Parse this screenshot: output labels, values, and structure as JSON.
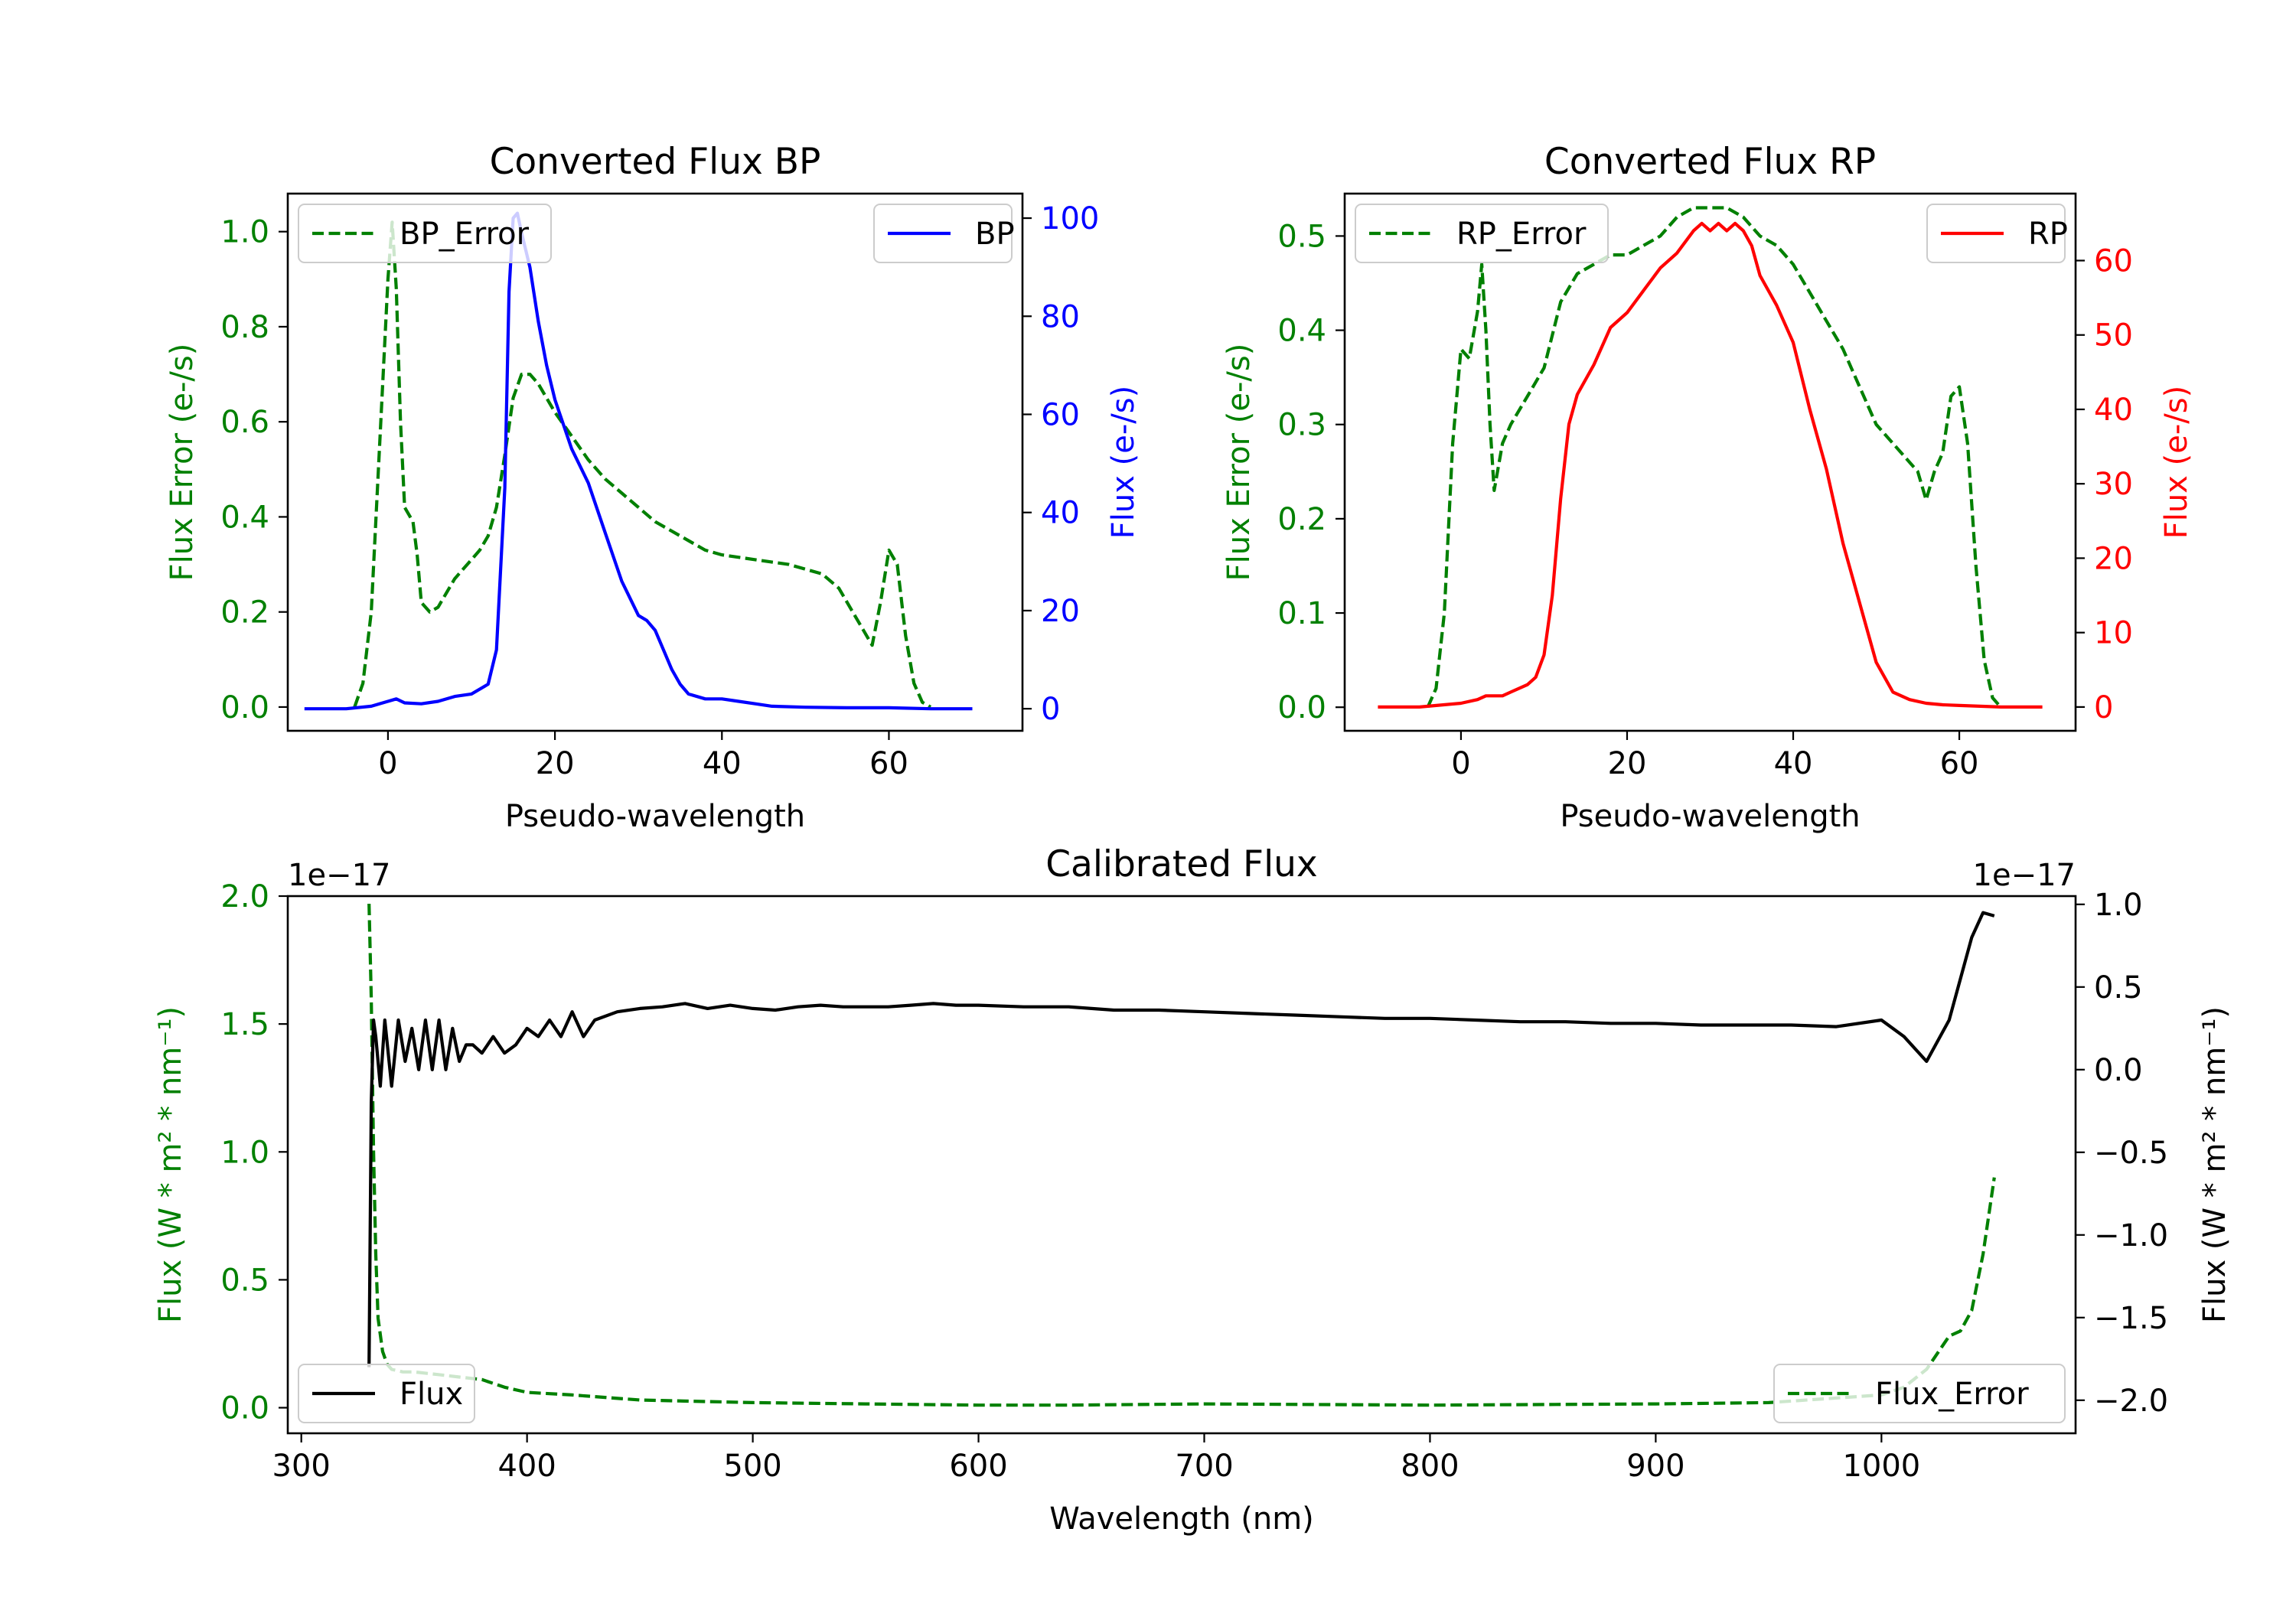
{
  "chart_data": [
    {
      "type": "line",
      "title": "Converted Flux BP",
      "xlabel": "Pseudo-wavelength",
      "ylabel_left": "Flux Error (e-/s)",
      "ylabel_right": "Flux (e-/s)",
      "xlim": [
        -12,
        76
      ],
      "ylim_left": [
        -0.05,
        1.08
      ],
      "ylim_right": [
        -4.5,
        105
      ],
      "xticks": [
        0,
        20,
        40,
        60
      ],
      "yticks_left": [
        0.0,
        0.2,
        0.4,
        0.6,
        0.8,
        1.0
      ],
      "yticks_right": [
        0,
        20,
        40,
        60,
        80,
        100
      ],
      "grid": false,
      "colors": {
        "error": "#008000",
        "flux": "#0000ff",
        "left_axis": "#008000",
        "right_axis": "#0000ff"
      },
      "legend": [
        {
          "label": "BP_Error",
          "series": "error",
          "position": "top-left"
        },
        {
          "label": "BP",
          "series": "flux",
          "position": "top-right"
        }
      ],
      "series": [
        {
          "name": "BP_Error",
          "axis": "left",
          "style": "dashed",
          "color": "#008000",
          "x": [
            -4,
            -3,
            -2,
            -1,
            0,
            0.5,
            1,
            1.5,
            2,
            3,
            3.5,
            4,
            5,
            6,
            7,
            8,
            9,
            10,
            11,
            12,
            13,
            14,
            15,
            16,
            17,
            18,
            19,
            20,
            22,
            24,
            26,
            28,
            30,
            32,
            34,
            36,
            38,
            40,
            44,
            48,
            52,
            54,
            56,
            57,
            58,
            59,
            60,
            61,
            62,
            63,
            64,
            65
          ],
          "y": [
            0.0,
            0.05,
            0.2,
            0.55,
            0.9,
            1.02,
            0.88,
            0.6,
            0.42,
            0.39,
            0.32,
            0.22,
            0.2,
            0.21,
            0.24,
            0.27,
            0.29,
            0.31,
            0.33,
            0.36,
            0.42,
            0.53,
            0.65,
            0.7,
            0.7,
            0.68,
            0.65,
            0.62,
            0.57,
            0.52,
            0.48,
            0.45,
            0.42,
            0.39,
            0.37,
            0.35,
            0.33,
            0.32,
            0.31,
            0.3,
            0.28,
            0.25,
            0.19,
            0.16,
            0.13,
            0.22,
            0.33,
            0.3,
            0.15,
            0.05,
            0.01,
            0.0
          ]
        },
        {
          "name": "BP",
          "axis": "right",
          "style": "solid",
          "color": "#0000ff",
          "x": [
            -10,
            -5,
            -2,
            0,
            1,
            2,
            4,
            6,
            8,
            10,
            12,
            13,
            14,
            14.5,
            15,
            15.5,
            16,
            17,
            18,
            19,
            20,
            21,
            22,
            24,
            26,
            28,
            30,
            31,
            32,
            33,
            34,
            35,
            36,
            38,
            40,
            42,
            44,
            46,
            50,
            55,
            60,
            65,
            70
          ],
          "y": [
            0,
            0,
            0.5,
            1.5,
            2,
            1.2,
            1,
            1.5,
            2.5,
            3,
            5,
            12,
            45,
            85,
            100,
            101,
            97,
            90,
            79,
            70,
            63,
            58,
            53,
            46,
            36,
            26,
            19,
            18,
            16,
            12,
            8,
            5,
            3,
            2,
            2,
            1.5,
            1,
            0.5,
            0.3,
            0.2,
            0.2,
            0,
            0
          ]
        }
      ]
    },
    {
      "type": "line",
      "title": "Converted Flux RP",
      "xlabel": "Pseudo-wavelength",
      "ylabel_left": "Flux Error (e-/s)",
      "ylabel_right": "Flux (e-/s)",
      "xlim": [
        -14,
        74
      ],
      "ylim_left": [
        -0.025,
        0.545
      ],
      "ylim_right": [
        -3.2,
        69
      ],
      "xticks": [
        0,
        20,
        40,
        60
      ],
      "yticks_left": [
        0.0,
        0.1,
        0.2,
        0.3,
        0.4,
        0.5
      ],
      "yticks_right": [
        0,
        10,
        20,
        30,
        40,
        50,
        60
      ],
      "grid": false,
      "colors": {
        "error": "#008000",
        "flux": "#ff0000",
        "left_axis": "#008000",
        "right_axis": "#ff0000"
      },
      "legend": [
        {
          "label": "RP_Error",
          "series": "error",
          "position": "top-left"
        },
        {
          "label": "RP",
          "series": "flux",
          "position": "top-right"
        }
      ],
      "series": [
        {
          "name": "RP_Error",
          "axis": "left",
          "style": "dashed",
          "color": "#008000",
          "x": [
            -4,
            -3,
            -2,
            -1,
            0,
            1,
            2,
            2.5,
            3,
            3.5,
            4,
            5,
            6,
            8,
            10,
            12,
            14,
            16,
            18,
            20,
            22,
            24,
            26,
            28,
            30,
            32,
            34,
            36,
            38,
            40,
            42,
            44,
            46,
            48,
            50,
            52,
            54,
            55,
            56,
            57,
            58,
            59,
            60,
            61,
            62,
            63,
            64,
            65
          ],
          "y": [
            0.0,
            0.02,
            0.1,
            0.28,
            0.38,
            0.37,
            0.42,
            0.47,
            0.4,
            0.3,
            0.23,
            0.28,
            0.3,
            0.33,
            0.36,
            0.43,
            0.46,
            0.47,
            0.48,
            0.48,
            0.49,
            0.5,
            0.52,
            0.53,
            0.53,
            0.53,
            0.52,
            0.5,
            0.49,
            0.47,
            0.44,
            0.41,
            0.38,
            0.34,
            0.3,
            0.28,
            0.26,
            0.25,
            0.22,
            0.25,
            0.27,
            0.33,
            0.34,
            0.28,
            0.15,
            0.05,
            0.01,
            0.0
          ]
        },
        {
          "name": "RP",
          "axis": "right",
          "style": "solid",
          "color": "#ff0000",
          "x": [
            -10,
            -5,
            0,
            2,
            3,
            5,
            6,
            8,
            9,
            10,
            11,
            12,
            13,
            14,
            16,
            18,
            20,
            22,
            24,
            26,
            28,
            29,
            30,
            31,
            32,
            33,
            34,
            35,
            36,
            38,
            40,
            42,
            44,
            46,
            48,
            50,
            52,
            54,
            56,
            58,
            60,
            65,
            70
          ],
          "y": [
            0,
            0,
            0.5,
            1,
            1.5,
            1.5,
            2,
            3,
            4,
            7,
            15,
            28,
            38,
            42,
            46,
            51,
            53,
            56,
            59,
            61,
            64,
            65,
            64,
            65,
            64,
            65,
            64,
            62,
            58,
            54,
            49,
            40,
            32,
            22,
            14,
            6,
            2,
            1,
            0.5,
            0.3,
            0.2,
            0,
            0
          ]
        }
      ]
    },
    {
      "type": "line",
      "title": "Calibrated Flux",
      "xlabel": "Wavelength (nm)",
      "ylabel_left": "Flux (W * m² * nm⁻¹)",
      "ylabel_right": "Flux (W * m² * nm⁻¹)",
      "offset_left": "1e−17",
      "offset_right": "1e−17",
      "xlim": [
        294,
        1086
      ],
      "ylim_left": [
        -0.1,
        2.0
      ],
      "ylim_right": [
        -2.2,
        1.05
      ],
      "xticks": [
        300,
        400,
        500,
        600,
        700,
        800,
        900,
        1000
      ],
      "yticks_left": [
        0.0,
        0.5,
        1.0,
        1.5,
        2.0
      ],
      "yticks_right": [
        -2.0,
        -1.5,
        -1.0,
        -0.5,
        0.0,
        0.5,
        1.0
      ],
      "ytick_labels_left": [
        "0.0",
        "0.5",
        "1.0",
        "1.5",
        "2.0"
      ],
      "ytick_labels_right": [
        "−2.0",
        "−1.5",
        "−1.0",
        "−0.5",
        "0.0",
        "0.5",
        "1.0"
      ],
      "grid": false,
      "colors": {
        "error": "#008000",
        "flux": "#000000",
        "left_axis": "#008000",
        "right_axis": "#000000"
      },
      "legend": [
        {
          "label": "Flux",
          "series": "flux",
          "position": "bottom-left"
        },
        {
          "label": "Flux_Error",
          "series": "error",
          "position": "bottom-right"
        }
      ],
      "series": [
        {
          "name": "Flux_Error",
          "axis": "left",
          "style": "dashed",
          "color": "#008000",
          "x": [
            330,
            331,
            332,
            333,
            334,
            336,
            338,
            340,
            345,
            350,
            360,
            370,
            380,
            390,
            400,
            420,
            450,
            500,
            550,
            600,
            640,
            700,
            800,
            900,
            950,
            1000,
            1010,
            1020,
            1030,
            1035,
            1040,
            1045,
            1050
          ],
          "y": [
            1.97,
            1.6,
            1.0,
            0.6,
            0.35,
            0.22,
            0.17,
            0.15,
            0.14,
            0.14,
            0.13,
            0.12,
            0.11,
            0.08,
            0.06,
            0.05,
            0.03,
            0.02,
            0.015,
            0.01,
            0.01,
            0.015,
            0.01,
            0.015,
            0.02,
            0.05,
            0.08,
            0.15,
            0.28,
            0.3,
            0.38,
            0.6,
            0.9
          ]
        },
        {
          "name": "Flux",
          "axis": "right",
          "style": "solid",
          "color": "#000000",
          "x": [
            330,
            331,
            332,
            333,
            335,
            337,
            340,
            343,
            346,
            349,
            352,
            355,
            358,
            361,
            364,
            367,
            370,
            373,
            376,
            380,
            385,
            390,
            395,
            400,
            405,
            410,
            415,
            420,
            425,
            430,
            440,
            450,
            460,
            470,
            480,
            490,
            500,
            510,
            520,
            530,
            540,
            550,
            560,
            570,
            580,
            590,
            600,
            620,
            640,
            660,
            680,
            700,
            720,
            740,
            760,
            780,
            800,
            820,
            840,
            860,
            880,
            900,
            920,
            940,
            960,
            980,
            1000,
            1010,
            1020,
            1030,
            1040,
            1045,
            1050
          ],
          "y": [
            -1.8,
            -0.2,
            0.3,
            0.2,
            -0.1,
            0.3,
            -0.1,
            0.3,
            0.05,
            0.25,
            0.0,
            0.3,
            0.0,
            0.3,
            0.0,
            0.25,
            0.05,
            0.15,
            0.15,
            0.1,
            0.2,
            0.1,
            0.15,
            0.25,
            0.2,
            0.3,
            0.2,
            0.35,
            0.2,
            0.3,
            0.35,
            0.37,
            0.38,
            0.4,
            0.37,
            0.39,
            0.37,
            0.36,
            0.38,
            0.39,
            0.38,
            0.38,
            0.38,
            0.39,
            0.4,
            0.39,
            0.39,
            0.38,
            0.38,
            0.36,
            0.36,
            0.35,
            0.34,
            0.33,
            0.32,
            0.31,
            0.31,
            0.3,
            0.29,
            0.29,
            0.28,
            0.28,
            0.27,
            0.27,
            0.27,
            0.26,
            0.3,
            0.2,
            0.05,
            0.3,
            0.8,
            0.95,
            0.93
          ]
        }
      ]
    }
  ]
}
